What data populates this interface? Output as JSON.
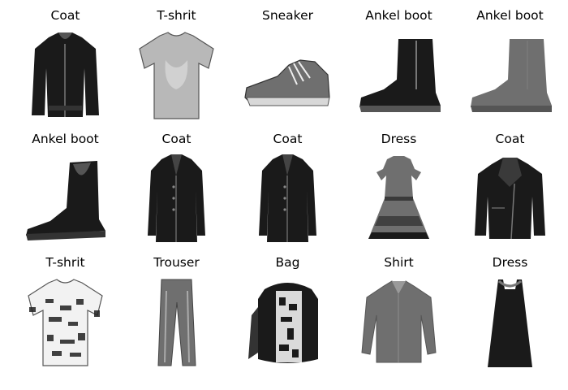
{
  "colors": {
    "background": "#ffffff",
    "title_text": "#000000",
    "garment_dark": "#1a1a1a",
    "garment_mid": "#6f6f6f",
    "garment_light": "#b8b8b8"
  },
  "items": [
    {
      "label": "Coat",
      "icon": "coat-icon",
      "tone": "dark"
    },
    {
      "label": "T-shrit",
      "icon": "t-shirt-icon",
      "tone": "light"
    },
    {
      "label": "Sneaker",
      "icon": "sneaker-icon",
      "tone": "mid"
    },
    {
      "label": "Ankel boot",
      "icon": "ankle-boot-icon",
      "tone": "dark"
    },
    {
      "label": "Ankel boot",
      "icon": "ankle-boot-icon",
      "tone": "mid"
    },
    {
      "label": "Ankel boot",
      "icon": "chelsea-boot-icon",
      "tone": "dark"
    },
    {
      "label": "Coat",
      "icon": "long-coat-icon",
      "tone": "dark"
    },
    {
      "label": "Coat",
      "icon": "long-coat-icon",
      "tone": "dark"
    },
    {
      "label": "Dress",
      "icon": "dress-icon",
      "tone": "mid"
    },
    {
      "label": "Coat",
      "icon": "jacket-icon",
      "tone": "dark"
    },
    {
      "label": "T-shrit",
      "icon": "t-shirt-icon",
      "tone": "patterned"
    },
    {
      "label": "Trouser",
      "icon": "trouser-icon",
      "tone": "mid"
    },
    {
      "label": "Bag",
      "icon": "bag-icon",
      "tone": "dark"
    },
    {
      "label": "Shirt",
      "icon": "shirt-icon",
      "tone": "mid"
    },
    {
      "label": "Dress",
      "icon": "slip-dress-icon",
      "tone": "dark"
    }
  ]
}
